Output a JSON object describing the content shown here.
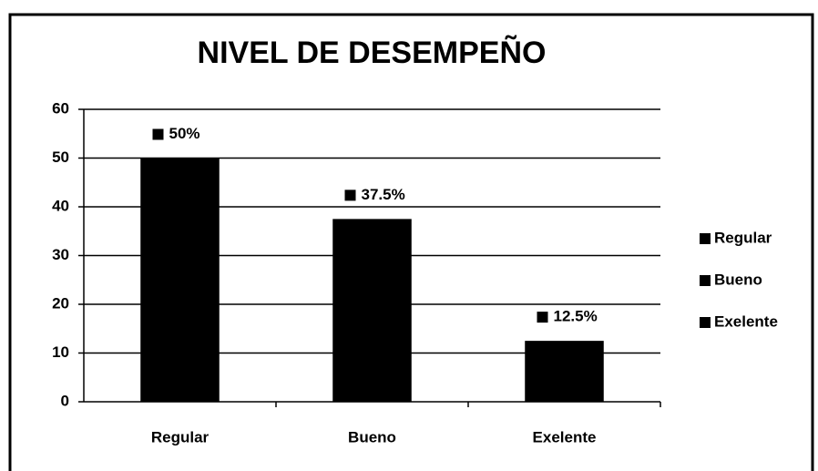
{
  "chart_data": {
    "type": "bar",
    "title": "NIVEL DE DESEMPEÑO",
    "categories": [
      "Regular",
      "Bueno",
      "Exelente"
    ],
    "values": [
      50,
      37.5,
      12.5
    ],
    "value_labels": [
      "50%",
      "37.5%",
      "12.5%"
    ],
    "color": "#000000",
    "ylim": [
      0,
      60
    ],
    "yticks": [
      0,
      10,
      20,
      30,
      40,
      50,
      60
    ],
    "grid": true,
    "legend": "right"
  }
}
